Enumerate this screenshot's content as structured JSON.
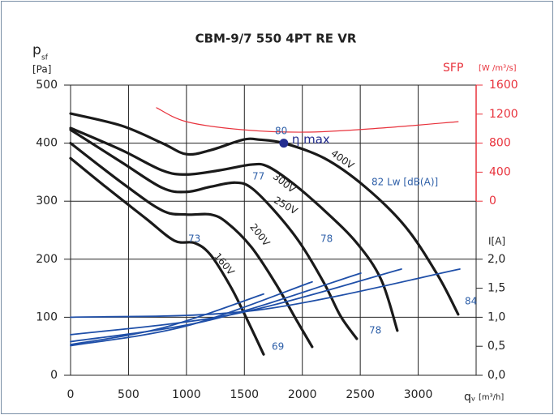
{
  "chart_data": {
    "type": "line",
    "title": "CBM-9/7 550 4PT RE VR",
    "y_label": "p",
    "y_label_sub": "sf",
    "y_unit": "[Pa]",
    "x_label": "q",
    "x_label_sub": "v",
    "x_unit": "[m³/h]",
    "y2_label": "SFP",
    "y2_unit": "[W /m³/s]",
    "y3_label": "I[A]",
    "xlim": [
      0,
      3500
    ],
    "xticks": [
      0,
      500,
      1000,
      1500,
      2000,
      2500,
      3000
    ],
    "ylim": [
      0,
      500
    ],
    "yticks": [
      0,
      100,
      200,
      300,
      400,
      500
    ],
    "y2lim": [
      -2400,
      1600
    ],
    "y2ticks": [
      0,
      400,
      800,
      1200,
      1600
    ],
    "y3lim": [
      0,
      5
    ],
    "y3ticks": [
      {
        "value": 0,
        "label": "0,0"
      },
      {
        "value": 0.5,
        "label": "0,5"
      },
      {
        "value": 1,
        "label": "1,0"
      },
      {
        "value": 1.5,
        "label": "1,5"
      },
      {
        "value": 2,
        "label": "2,0"
      }
    ],
    "grid": true,
    "series": [
      {
        "name": "400V",
        "color": "#1a1a1a",
        "x": [
          0,
          441,
          791,
          1000,
          1210,
          1490,
          1630,
          1840,
          2190,
          2540,
          2890,
          3170,
          3345
        ],
        "values": [
          451,
          430,
          400,
          381,
          388,
          406,
          406,
          400,
          374,
          325,
          256,
          172,
          105
        ]
      },
      {
        "name": "300V",
        "color": "#1a1a1a",
        "x": [
          0,
          441,
          791,
          1000,
          1280,
          1560,
          1700,
          1910,
          2190,
          2470,
          2680,
          2820
        ],
        "values": [
          426,
          388,
          353,
          346,
          353,
          363,
          360,
          332,
          284,
          228,
          165,
          77
        ]
      },
      {
        "name": "250V",
        "color": "#1a1a1a",
        "x": [
          0,
          441,
          791,
          1000,
          1210,
          1420,
          1560,
          1770,
          1980,
          2190,
          2330,
          2470
        ],
        "values": [
          423,
          367,
          323,
          316,
          325,
          332,
          323,
          281,
          228,
          158,
          102,
          63
        ]
      },
      {
        "name": "200V",
        "color": "#1a1a1a",
        "x": [
          0,
          441,
          791,
          1000,
          1210,
          1350,
          1560,
          1770,
          1950,
          2085
        ],
        "values": [
          400,
          332,
          284,
          277,
          277,
          263,
          221,
          158,
          95,
          49
        ]
      },
      {
        "name": "160V",
        "color": "#1a1a1a",
        "x": [
          0,
          301,
          651,
          896,
          1070,
          1210,
          1386,
          1526,
          1666
        ],
        "values": [
          374,
          325,
          270,
          232,
          228,
          207,
          151,
          95,
          36
        ]
      },
      {
        "color": "#1f4fa8",
        "axis": "y3",
        "x": [
          0,
          800,
          1666
        ],
        "values": [
          0.53,
          0.82,
          1.4
        ]
      },
      {
        "color": "#1f4fa8",
        "axis": "y3",
        "x": [
          0,
          1000,
          2085
        ],
        "values": [
          0.51,
          0.85,
          1.61
        ]
      },
      {
        "color": "#1f4fa8",
        "axis": "y3",
        "x": [
          0,
          1200,
          2505
        ],
        "values": [
          0.58,
          0.95,
          1.76
        ]
      },
      {
        "color": "#1f4fa8",
        "axis": "y3",
        "x": [
          0,
          1400,
          2855
        ],
        "values": [
          0.7,
          1.05,
          1.83
        ]
      },
      {
        "color": "#1f4fa8",
        "axis": "y3",
        "x": [
          0,
          1600,
          3359
        ],
        "values": [
          1.0,
          1.12,
          1.83
        ]
      },
      {
        "color": "#e8323c",
        "axis": "y2",
        "x": [
          742,
          1000,
          1490,
          2050,
          2680,
          3345
        ],
        "values": [
          1288,
          1096,
          984,
          952,
          1008,
          1096
        ]
      }
    ],
    "annotations": [
      "80",
      "77",
      "73",
      "78",
      "78",
      "69",
      "84",
      "82 Lw [dB(A)]"
    ],
    "eta_max": {
      "label": "η max",
      "x": 1840,
      "y": 400,
      "color": "#232d8f"
    }
  }
}
